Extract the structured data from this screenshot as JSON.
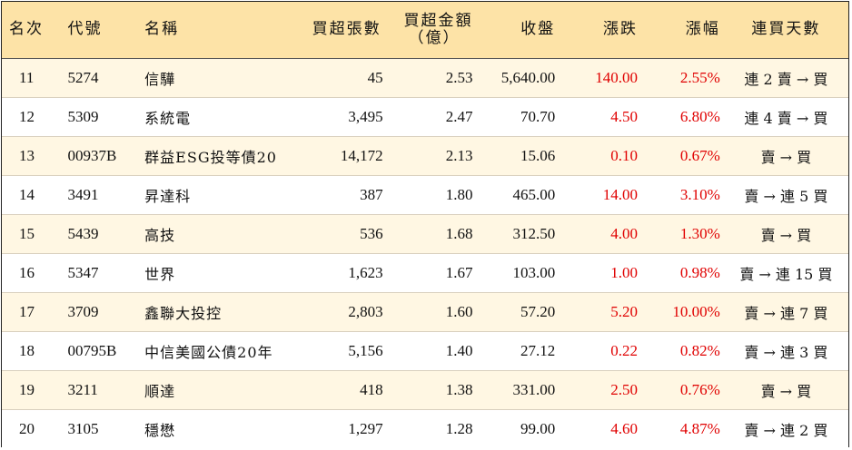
{
  "headers": {
    "rank": "名次",
    "code": "代號",
    "name": "名稱",
    "net_buy_lots": "買超張數",
    "net_buy_amount_line1": "買超金額",
    "net_buy_amount_line2": "（億）",
    "close": "收盤",
    "change": "漲跌",
    "change_pct": "漲幅",
    "consecutive_days": "連買天數"
  },
  "rows": [
    {
      "rank": "11",
      "code": "5274",
      "name": "信驊",
      "lots": "45",
      "amount": "2.53",
      "close": "5,640.00",
      "change": "140.00",
      "pct": "2.55%",
      "streak": "連 2 賣 → 買"
    },
    {
      "rank": "12",
      "code": "5309",
      "name": "系統電",
      "lots": "3,495",
      "amount": "2.47",
      "close": "70.70",
      "change": "4.50",
      "pct": "6.80%",
      "streak": "連 4 賣 → 買"
    },
    {
      "rank": "13",
      "code": "00937B",
      "name": "群益ESG投等債20",
      "lots": "14,172",
      "amount": "2.13",
      "close": "15.06",
      "change": "0.10",
      "pct": "0.67%",
      "streak": "賣 → 買"
    },
    {
      "rank": "14",
      "code": "3491",
      "name": "昇達科",
      "lots": "387",
      "amount": "1.80",
      "close": "465.00",
      "change": "14.00",
      "pct": "3.10%",
      "streak": "賣 → 連 5 買"
    },
    {
      "rank": "15",
      "code": "5439",
      "name": "高技",
      "lots": "536",
      "amount": "1.68",
      "close": "312.50",
      "change": "4.00",
      "pct": "1.30%",
      "streak": "賣 → 買"
    },
    {
      "rank": "16",
      "code": "5347",
      "name": "世界",
      "lots": "1,623",
      "amount": "1.67",
      "close": "103.00",
      "change": "1.00",
      "pct": "0.98%",
      "streak": "賣 → 連 15 買"
    },
    {
      "rank": "17",
      "code": "3709",
      "name": "鑫聯大投控",
      "lots": "2,803",
      "amount": "1.60",
      "close": "57.20",
      "change": "5.20",
      "pct": "10.00%",
      "streak": "賣 → 連 7 買"
    },
    {
      "rank": "18",
      "code": "00795B",
      "name": "中信美國公債20年",
      "lots": "5,156",
      "amount": "1.40",
      "close": "27.12",
      "change": "0.22",
      "pct": "0.82%",
      "streak": "賣 → 連 3 買"
    },
    {
      "rank": "19",
      "code": "3211",
      "name": "順達",
      "lots": "418",
      "amount": "1.38",
      "close": "331.00",
      "change": "2.50",
      "pct": "0.76%",
      "streak": "賣 → 買"
    },
    {
      "rank": "20",
      "code": "3105",
      "name": "穩懋",
      "lots": "1,297",
      "amount": "1.28",
      "close": "99.00",
      "change": "4.60",
      "pct": "4.87%",
      "streak": "賣 → 連 2 買"
    }
  ],
  "colors": {
    "header_bg": "#fde3a7",
    "odd_row_bg": "#fff7e3",
    "up_color": "#e00000"
  }
}
